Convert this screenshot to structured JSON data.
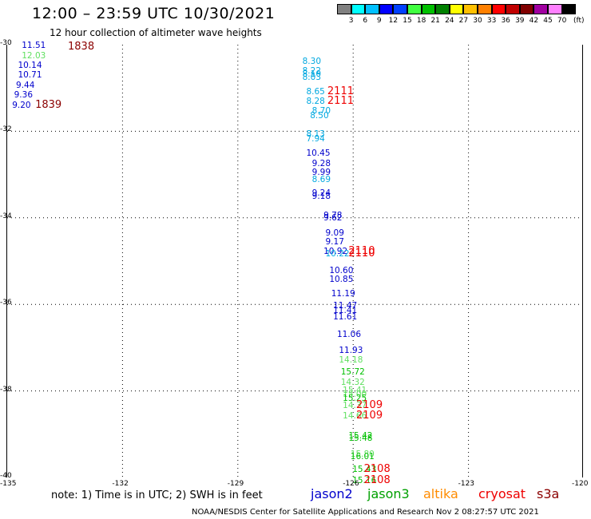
{
  "header": {
    "title": "12:00 – 23:59 UTC 10/30/2021",
    "subtitle": "12 hour collection of altimeter wave heights"
  },
  "colorbar": {
    "colors": [
      "#808080",
      "#00ffff",
      "#00c0ff",
      "#0000ff",
      "#0040ff",
      "#40ff40",
      "#00c000",
      "#008000",
      "#ffff00",
      "#ffc000",
      "#ff8000",
      "#ff0000",
      "#c00000",
      "#800000",
      "#a000a0",
      "#ff80ff",
      "#000000"
    ],
    "labels": [
      "3",
      "6",
      "9",
      "12",
      "15",
      "18",
      "21",
      "24",
      "27",
      "30",
      "33",
      "36",
      "39",
      "42",
      "45",
      "70"
    ],
    "unit": "(ft)"
  },
  "axes": {
    "lat_labels": [
      "-30",
      "-32",
      "-34",
      "-36",
      "-38",
      "-40"
    ],
    "lon_labels": [
      "-135",
      "-132",
      "-129",
      "-126",
      "-123",
      "-120"
    ]
  },
  "chart_data": {
    "type": "scatter",
    "x_range": [
      -135,
      -120
    ],
    "y_range": [
      -40,
      -30
    ],
    "wave_heights": [
      {
        "lon": -134.6,
        "lat": -30.02,
        "v": "11.51",
        "c": "#0000cc"
      },
      {
        "lon": -134.6,
        "lat": -30.25,
        "v": "12.03",
        "c": "#60e060"
      },
      {
        "lon": -134.7,
        "lat": -30.48,
        "v": "10.14",
        "c": "#0000cc"
      },
      {
        "lon": -134.7,
        "lat": -30.71,
        "v": "10.71",
        "c": "#0000cc"
      },
      {
        "lon": -134.75,
        "lat": -30.94,
        "v": "9.44",
        "c": "#0000cc"
      },
      {
        "lon": -134.8,
        "lat": -31.17,
        "v": "9.36",
        "c": "#0000cc"
      },
      {
        "lon": -134.85,
        "lat": -31.4,
        "v": "9.20",
        "c": "#0000cc"
      },
      {
        "lon": -127.3,
        "lat": -30.38,
        "v": "8.30",
        "c": "#00a8e0"
      },
      {
        "lon": -127.3,
        "lat": -30.6,
        "v": "8.22",
        "c": "#00a8e0"
      },
      {
        "lon": -127.3,
        "lat": -30.68,
        "v": "8.10",
        "c": "#00a8e0"
      },
      {
        "lon": -127.3,
        "lat": -30.76,
        "v": "8.03",
        "c": "#00a8e0"
      },
      {
        "lon": -127.2,
        "lat": -31.09,
        "v": "8.65",
        "c": "#00a8e0"
      },
      {
        "lon": -127.2,
        "lat": -31.31,
        "v": "8.28",
        "c": "#00a8e0"
      },
      {
        "lon": -127.05,
        "lat": -31.53,
        "v": "8.70",
        "c": "#00a8e0"
      },
      {
        "lon": -127.1,
        "lat": -31.64,
        "v": "8.50",
        "c": "#00a8e0"
      },
      {
        "lon": -127.2,
        "lat": -32.06,
        "v": "8.13",
        "c": "#00a8e0"
      },
      {
        "lon": -127.2,
        "lat": -32.17,
        "v": "7.94",
        "c": "#00a8e0"
      },
      {
        "lon": -127.2,
        "lat": -32.5,
        "v": "10.45",
        "c": "#0000cc"
      },
      {
        "lon": -127.05,
        "lat": -32.75,
        "v": "9.28",
        "c": "#0000cc"
      },
      {
        "lon": -127.05,
        "lat": -32.95,
        "v": "9.99",
        "c": "#0000cc"
      },
      {
        "lon": -127.05,
        "lat": -33.12,
        "v": "8.69",
        "c": "#00a8e0"
      },
      {
        "lon": -127.05,
        "lat": -33.44,
        "v": "9.24",
        "c": "#0000cc"
      },
      {
        "lon": -127.05,
        "lat": -33.5,
        "v": "9.18",
        "c": "#0000cc"
      },
      {
        "lon": -126.75,
        "lat": -33.94,
        "v": "9.78",
        "c": "#0000cc"
      },
      {
        "lon": -126.75,
        "lat": -34.0,
        "v": "9.62",
        "c": "#0000cc"
      },
      {
        "lon": -126.7,
        "lat": -34.35,
        "v": "9.09",
        "c": "#0000cc"
      },
      {
        "lon": -126.7,
        "lat": -34.56,
        "v": "9.17",
        "c": "#0000cc"
      },
      {
        "lon": -126.75,
        "lat": -34.78,
        "v": "10.92",
        "c": "#0000cc"
      },
      {
        "lon": -126.7,
        "lat": -34.84,
        "v": "10.22",
        "c": "#00a8e0"
      },
      {
        "lon": -126.6,
        "lat": -35.23,
        "v": "10.60",
        "c": "#0000cc"
      },
      {
        "lon": -126.6,
        "lat": -35.43,
        "v": "10.85",
        "c": "#0000cc"
      },
      {
        "lon": -126.55,
        "lat": -35.76,
        "v": "11.19",
        "c": "#0000cc"
      },
      {
        "lon": -126.5,
        "lat": -36.04,
        "v": "11.47",
        "c": "#0000cc"
      },
      {
        "lon": -126.5,
        "lat": -36.15,
        "v": "11.41",
        "c": "#0000cc"
      },
      {
        "lon": -126.5,
        "lat": -36.3,
        "v": "11.61",
        "c": "#0000cc"
      },
      {
        "lon": -126.4,
        "lat": -36.7,
        "v": "11.06",
        "c": "#0000cc"
      },
      {
        "lon": -126.35,
        "lat": -37.06,
        "v": "11.93",
        "c": "#0000cc"
      },
      {
        "lon": -126.35,
        "lat": -37.28,
        "v": "14.18",
        "c": "#60e060"
      },
      {
        "lon": -126.3,
        "lat": -37.57,
        "v": "15.72",
        "c": "#00c000"
      },
      {
        "lon": -126.3,
        "lat": -37.8,
        "v": "14.32",
        "c": "#60e060"
      },
      {
        "lon": -126.25,
        "lat": -37.98,
        "v": "15.41",
        "c": "#60e060"
      },
      {
        "lon": -126.25,
        "lat": -38.08,
        "v": "15.00",
        "c": "#60e060"
      },
      {
        "lon": -126.25,
        "lat": -38.18,
        "v": "15.25",
        "c": "#00c000"
      },
      {
        "lon": -126.25,
        "lat": -38.34,
        "v": "14.37",
        "c": "#60e060"
      },
      {
        "lon": -126.25,
        "lat": -38.58,
        "v": "14.66",
        "c": "#60e060"
      },
      {
        "lon": -126.1,
        "lat": -39.04,
        "v": "15.42",
        "c": "#00c000"
      },
      {
        "lon": -126.1,
        "lat": -39.1,
        "v": "15.48",
        "c": "#00c000"
      },
      {
        "lon": -126.05,
        "lat": -39.46,
        "v": "15.80",
        "c": "#60e060"
      },
      {
        "lon": -126.05,
        "lat": -39.52,
        "v": "16.01",
        "c": "#00c000"
      },
      {
        "lon": -126.0,
        "lat": -39.82,
        "v": "15.43",
        "c": "#00c000"
      },
      {
        "lon": -126.0,
        "lat": -40.08,
        "v": "15.16",
        "c": "#00c000"
      }
    ],
    "times": [
      {
        "lon": -133.4,
        "lat": -30.05,
        "v": "1838",
        "c": "#8b0000"
      },
      {
        "lon": -134.25,
        "lat": -31.4,
        "v": "1839",
        "c": "#8b0000"
      },
      {
        "lon": -126.65,
        "lat": -31.09,
        "v": "2111",
        "c": "#ee0000"
      },
      {
        "lon": -126.65,
        "lat": -31.31,
        "v": "2111",
        "c": "#ee0000"
      },
      {
        "lon": -126.1,
        "lat": -34.78,
        "v": "2110",
        "c": "#ee0000"
      },
      {
        "lon": -126.1,
        "lat": -34.84,
        "v": "2110",
        "c": "#ee0000"
      },
      {
        "lon": -125.9,
        "lat": -38.34,
        "v": "2109",
        "c": "#ee0000"
      },
      {
        "lon": -125.9,
        "lat": -38.58,
        "v": "2109",
        "c": "#ee0000"
      },
      {
        "lon": -125.7,
        "lat": -39.82,
        "v": "2108",
        "c": "#ee0000"
      },
      {
        "lon": -125.7,
        "lat": -40.08,
        "v": "2108",
        "c": "#ee0000"
      }
    ]
  },
  "legend": {
    "note": "note:  1) Time is in UTC;  2) SWH is in feet",
    "satellites": [
      {
        "name": "jason2",
        "color": "#0000cc"
      },
      {
        "name": "jason3",
        "color": "#00a000"
      },
      {
        "name": "altika",
        "color": "#ff8c00"
      },
      {
        "name": "cryosat",
        "color": "#ee0000"
      },
      {
        "name": "s3a",
        "color": "#8b0000"
      }
    ]
  },
  "footer": {
    "credit": "NOAA/NESDIS Center for Satellite Applications and Research     Nov  2 08:27:57 UTC 2021"
  }
}
